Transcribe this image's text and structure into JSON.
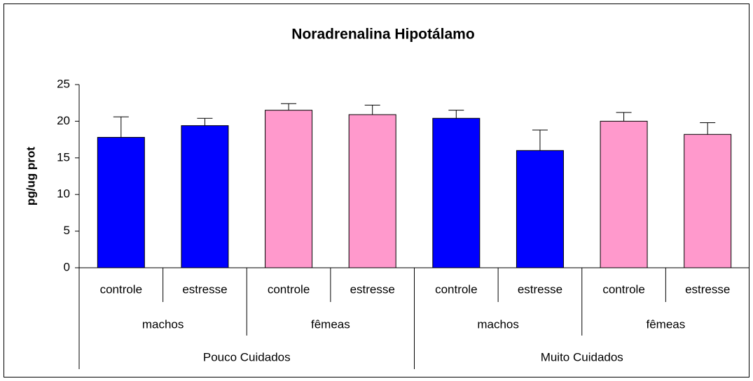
{
  "chart_data": {
    "type": "bar",
    "title": "Noradrenalina Hipotálamo",
    "y_label": "pg/ug prot",
    "categories": [
      "controle",
      "estresse",
      "controle",
      "estresse",
      "controle",
      "estresse",
      "controle",
      "estresse"
    ],
    "groups": [
      "machos",
      "fêmeas",
      "machos",
      "fêmeas"
    ],
    "supergroups": [
      "Pouco Cuidados",
      "Muito Cuidados"
    ],
    "values": [
      17.8,
      19.4,
      21.5,
      20.9,
      20.4,
      16.0,
      20.0,
      18.2
    ],
    "errors": [
      2.8,
      1.0,
      0.9,
      1.3,
      1.1,
      2.8,
      1.2,
      1.6
    ],
    "colors": [
      "#0000ff",
      "#0000ff",
      "#ff99cc",
      "#ff99cc",
      "#0000ff",
      "#0000ff",
      "#ff99cc",
      "#ff99cc"
    ],
    "ylim": [
      0,
      25
    ],
    "yticks": [
      0,
      5,
      10,
      15,
      20,
      25
    ],
    "grid": false
  }
}
